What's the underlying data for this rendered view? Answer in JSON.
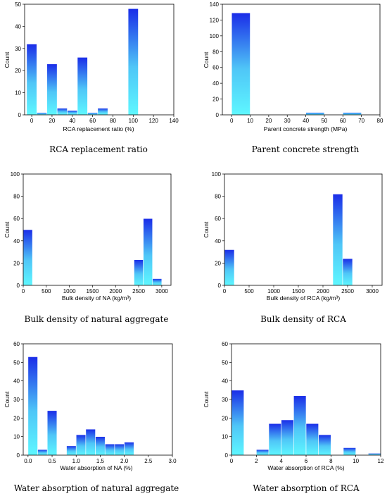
{
  "colors": {
    "bar_top": "#1a2ce8",
    "bar_bottom": "#5ef7ff"
  },
  "chart_data": [
    {
      "type": "bar",
      "title": "RCA replacement ratio",
      "xlabel": "RCA replacement ratio (%)",
      "ylabel": "Count",
      "xlim": [
        -7,
        140
      ],
      "ylim": [
        0,
        50
      ],
      "xticks": [
        "0",
        "20",
        "40",
        "60",
        "80",
        "100",
        "120",
        "140"
      ],
      "yticks": [
        "0",
        "10",
        "20",
        "30",
        "40",
        "50"
      ],
      "bar_width": 10,
      "x": [
        0,
        10,
        20,
        30,
        40,
        50,
        60,
        70,
        100
      ],
      "values": [
        32,
        1,
        23,
        3,
        2,
        26,
        1,
        3,
        48
      ]
    },
    {
      "type": "bar",
      "title": "Parent concrete strength",
      "xlabel": "Parent concrete strength (MPa)",
      "ylabel": "Count",
      "xlim": [
        -5,
        80
      ],
      "ylim": [
        0,
        140
      ],
      "xticks": [
        "0",
        "10",
        "20",
        "30",
        "40",
        "50",
        "60",
        "70",
        "80"
      ],
      "yticks": [
        "0",
        "20",
        "40",
        "60",
        "80",
        "100",
        "120",
        "140"
      ],
      "bar_width": 10,
      "x": [
        5,
        45,
        65
      ],
      "values": [
        129,
        3,
        3
      ]
    },
    {
      "type": "bar",
      "title": "Bulk density of natural aggregate",
      "xlabel": "Bulk density of NA (kg/m³)",
      "ylabel": "Count",
      "xlim": [
        0,
        3200
      ],
      "ylim": [
        0,
        100
      ],
      "xticks": [
        "0",
        "500",
        "1000",
        "1500",
        "2000",
        "2500",
        "3000"
      ],
      "yticks": [
        "0",
        "20",
        "40",
        "60",
        "80",
        "100"
      ],
      "bar_width": 200,
      "x": [
        100,
        2500,
        2700,
        2900
      ],
      "values": [
        50,
        23,
        60,
        6
      ]
    },
    {
      "type": "bar",
      "title": "Bulk density of RCA",
      "xlabel": "Bulk density of RCA (kg/m³)",
      "ylabel": "Count",
      "xlim": [
        0,
        3200
      ],
      "ylim": [
        0,
        100
      ],
      "xticks": [
        "0",
        "500",
        "1000",
        "1500",
        "2000",
        "2500",
        "3000"
      ],
      "yticks": [
        "0",
        "20",
        "40",
        "60",
        "80",
        "100"
      ],
      "bar_width": 200,
      "x": [
        100,
        2300,
        2500
      ],
      "values": [
        32,
        82,
        24
      ]
    },
    {
      "type": "bar",
      "title": "Water absorption of natural aggregate",
      "xlabel": "Water absorption of NA (%)",
      "ylabel": "Count",
      "xlim": [
        -0.1,
        3.0
      ],
      "ylim": [
        0,
        60
      ],
      "xticks": [
        "0.0",
        "0.5",
        "1.0",
        "1.5",
        "2.0",
        "2.5",
        "3.0"
      ],
      "yticks": [
        "0",
        "10",
        "20",
        "30",
        "40",
        "50",
        "60"
      ],
      "bar_width": 0.2,
      "x": [
        0.1,
        0.3,
        0.5,
        0.9,
        1.1,
        1.3,
        1.5,
        1.7,
        1.9,
        2.1
      ],
      "values": [
        53,
        3,
        24,
        5,
        11,
        14,
        10,
        6,
        6,
        7
      ]
    },
    {
      "type": "bar",
      "title": "Water absorption of RCA",
      "xlabel": "Water absorption of RCA (%)",
      "ylabel": "Count",
      "xlim": [
        0,
        12
      ],
      "ylim": [
        0,
        60
      ],
      "xticks": [
        "0",
        "2",
        "4",
        "6",
        "8",
        "10",
        "12"
      ],
      "yticks": [
        "0",
        "10",
        "20",
        "30",
        "40",
        "50",
        "60"
      ],
      "bar_width": 1,
      "x": [
        0.5,
        2.5,
        3.5,
        4.5,
        5.5,
        6.5,
        7.5,
        9.5,
        11.5
      ],
      "values": [
        35,
        3,
        17,
        19,
        32,
        17,
        11,
        4,
        1
      ]
    }
  ]
}
